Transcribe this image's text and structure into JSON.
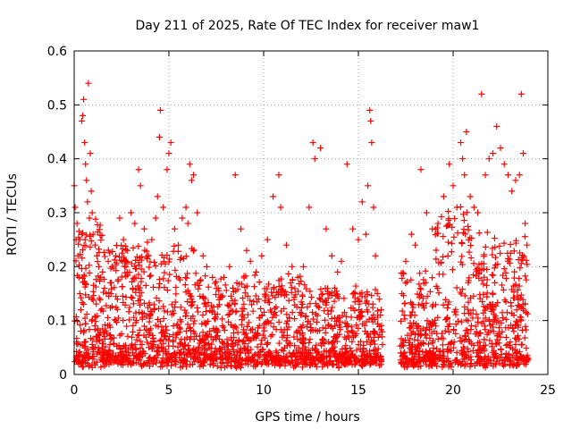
{
  "chart_data": {
    "type": "scatter",
    "title": "Day 211 of 2025, Rate Of TEC Index for receiver maw1",
    "xlabel": "GPS time / hours",
    "ylabel": "ROTI / TECUs",
    "xlim": [
      0,
      25
    ],
    "ylim": [
      0,
      0.6
    ],
    "x_ticks": [
      "0",
      "5",
      "10",
      "15",
      "20",
      "25"
    ],
    "y_ticks": [
      "0",
      "0.1",
      "0.2",
      "0.3",
      "0.4",
      "0.5",
      "0.6"
    ],
    "grid": true,
    "legend": "none",
    "marker": "plus",
    "color": "#ff0000",
    "data_gap_hours": [
      16.3,
      17.2
    ],
    "series": [
      {
        "points": [
          [
            0.0,
            0.35
          ],
          [
            0.05,
            0.31
          ],
          [
            0.1,
            0.25
          ],
          [
            0.15,
            0.28
          ],
          [
            0.2,
            0.22
          ],
          [
            0.25,
            0.18
          ],
          [
            0.3,
            0.15
          ],
          [
            0.35,
            0.12
          ],
          [
            0.4,
            0.47
          ],
          [
            0.45,
            0.48
          ],
          [
            0.5,
            0.51
          ],
          [
            0.55,
            0.43
          ],
          [
            0.6,
            0.39
          ],
          [
            0.65,
            0.36
          ],
          [
            0.7,
            0.32
          ],
          [
            0.75,
            0.54
          ],
          [
            0.8,
            0.29
          ],
          [
            0.85,
            0.41
          ],
          [
            0.9,
            0.34
          ],
          [
            0.95,
            0.3
          ],
          [
            1.0,
            0.26
          ],
          [
            1.1,
            0.24
          ],
          [
            1.2,
            0.22
          ],
          [
            1.3,
            0.2
          ],
          [
            1.4,
            0.18
          ],
          [
            1.5,
            0.19
          ],
          [
            1.6,
            0.16
          ],
          [
            1.7,
            0.15
          ],
          [
            1.8,
            0.21
          ],
          [
            1.9,
            0.17
          ],
          [
            2.0,
            0.2
          ],
          [
            2.2,
            0.22
          ],
          [
            2.4,
            0.29
          ],
          [
            2.6,
            0.25
          ],
          [
            2.8,
            0.23
          ],
          [
            3.0,
            0.3
          ],
          [
            3.2,
            0.28
          ],
          [
            3.4,
            0.38
          ],
          [
            3.5,
            0.35
          ],
          [
            3.7,
            0.27
          ],
          [
            3.9,
            0.22
          ],
          [
            4.1,
            0.25
          ],
          [
            4.3,
            0.29
          ],
          [
            4.4,
            0.33
          ],
          [
            4.5,
            0.44
          ],
          [
            4.55,
            0.49
          ],
          [
            4.7,
            0.31
          ],
          [
            4.9,
            0.38
          ],
          [
            5.0,
            0.41
          ],
          [
            5.1,
            0.43
          ],
          [
            5.3,
            0.27
          ],
          [
            5.5,
            0.24
          ],
          [
            5.7,
            0.29
          ],
          [
            5.9,
            0.31
          ],
          [
            6.0,
            0.28
          ],
          [
            6.1,
            0.39
          ],
          [
            6.2,
            0.36
          ],
          [
            6.3,
            0.37
          ],
          [
            6.5,
            0.3
          ],
          [
            6.8,
            0.22
          ],
          [
            7.0,
            0.2
          ],
          [
            7.3,
            0.18
          ],
          [
            7.6,
            0.16
          ],
          [
            7.9,
            0.18
          ],
          [
            8.2,
            0.2
          ],
          [
            8.5,
            0.37
          ],
          [
            8.8,
            0.27
          ],
          [
            9.1,
            0.23
          ],
          [
            9.3,
            0.21
          ],
          [
            9.6,
            0.19
          ],
          [
            9.9,
            0.22
          ],
          [
            10.2,
            0.25
          ],
          [
            10.5,
            0.33
          ],
          [
            10.8,
            0.37
          ],
          [
            10.9,
            0.31
          ],
          [
            11.2,
            0.24
          ],
          [
            11.5,
            0.2
          ],
          [
            11.8,
            0.18
          ],
          [
            12.1,
            0.2
          ],
          [
            12.4,
            0.31
          ],
          [
            12.6,
            0.43
          ],
          [
            12.7,
            0.4
          ],
          [
            13.0,
            0.42
          ],
          [
            13.3,
            0.27
          ],
          [
            13.6,
            0.22
          ],
          [
            13.9,
            0.19
          ],
          [
            14.1,
            0.21
          ],
          [
            14.4,
            0.39
          ],
          [
            14.7,
            0.27
          ],
          [
            15.0,
            0.25
          ],
          [
            15.2,
            0.32
          ],
          [
            15.4,
            0.26
          ],
          [
            15.5,
            0.35
          ],
          [
            15.6,
            0.49
          ],
          [
            15.65,
            0.47
          ],
          [
            15.7,
            0.43
          ],
          [
            15.8,
            0.31
          ],
          [
            15.9,
            0.22
          ],
          [
            16.0,
            0.15
          ],
          [
            16.2,
            0.12
          ],
          [
            17.3,
            0.15
          ],
          [
            17.5,
            0.21
          ],
          [
            17.8,
            0.26
          ],
          [
            18.0,
            0.24
          ],
          [
            18.3,
            0.38
          ],
          [
            18.6,
            0.3
          ],
          [
            18.9,
            0.27
          ],
          [
            19.2,
            0.28
          ],
          [
            19.5,
            0.33
          ],
          [
            19.8,
            0.39
          ],
          [
            20.0,
            0.35
          ],
          [
            20.2,
            0.31
          ],
          [
            20.4,
            0.43
          ],
          [
            20.5,
            0.4
          ],
          [
            20.6,
            0.37
          ],
          [
            20.7,
            0.45
          ],
          [
            20.9,
            0.33
          ],
          [
            21.1,
            0.31
          ],
          [
            21.3,
            0.3
          ],
          [
            21.5,
            0.52
          ],
          [
            21.7,
            0.37
          ],
          [
            21.9,
            0.4
          ],
          [
            22.1,
            0.41
          ],
          [
            22.3,
            0.46
          ],
          [
            22.5,
            0.42
          ],
          [
            22.7,
            0.39
          ],
          [
            22.9,
            0.37
          ],
          [
            23.1,
            0.34
          ],
          [
            23.3,
            0.36
          ],
          [
            23.5,
            0.37
          ],
          [
            23.6,
            0.52
          ],
          [
            23.7,
            0.41
          ],
          [
            23.8,
            0.28
          ],
          [
            23.9,
            0.24
          ]
        ]
      }
    ]
  }
}
